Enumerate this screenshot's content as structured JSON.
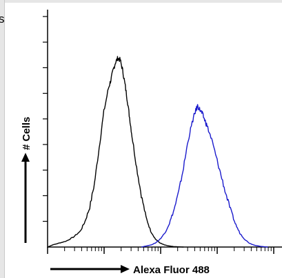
{
  "chart_data": {
    "type": "line",
    "title": "",
    "xlabel": "Alexa Fluor 488",
    "ylabel": "# Cells",
    "x_scale": "log",
    "y_range": [
      0,
      1
    ],
    "grid": false,
    "legend": "none",
    "edge_text": "s",
    "series": [
      {
        "color": "#000000",
        "x": [
          0.0,
          0.02,
          0.05,
          0.08,
          0.11,
          0.14,
          0.16,
          0.18,
          0.2,
          0.22,
          0.24,
          0.26,
          0.27,
          0.28,
          0.29,
          0.3,
          0.31,
          0.32,
          0.33,
          0.34,
          0.35,
          0.36,
          0.38,
          0.4,
          0.42,
          0.44,
          0.46,
          0.48,
          0.5,
          0.52,
          0.54,
          0.58
        ],
        "y": [
          0.0,
          0.01,
          0.02,
          0.03,
          0.05,
          0.08,
          0.13,
          0.2,
          0.32,
          0.5,
          0.68,
          0.8,
          0.84,
          0.89,
          0.93,
          0.95,
          0.94,
          0.89,
          0.82,
          0.74,
          0.65,
          0.56,
          0.4,
          0.26,
          0.15,
          0.08,
          0.04,
          0.02,
          0.01,
          0.005,
          0.002,
          0.0
        ]
      },
      {
        "color": "#1a1acc",
        "x": [
          0.4,
          0.44,
          0.46,
          0.48,
          0.5,
          0.52,
          0.54,
          0.56,
          0.58,
          0.6,
          0.62,
          0.63,
          0.64,
          0.65,
          0.66,
          0.67,
          0.68,
          0.7,
          0.72,
          0.74,
          0.76,
          0.78,
          0.8,
          0.82,
          0.84,
          0.86,
          0.88,
          0.91,
          0.94
        ],
        "y": [
          0.0,
          0.01,
          0.02,
          0.04,
          0.07,
          0.12,
          0.19,
          0.28,
          0.4,
          0.54,
          0.64,
          0.68,
          0.71,
          0.69,
          0.67,
          0.64,
          0.61,
          0.54,
          0.45,
          0.36,
          0.27,
          0.19,
          0.12,
          0.07,
          0.04,
          0.02,
          0.01,
          0.003,
          0.0
        ]
      }
    ]
  }
}
